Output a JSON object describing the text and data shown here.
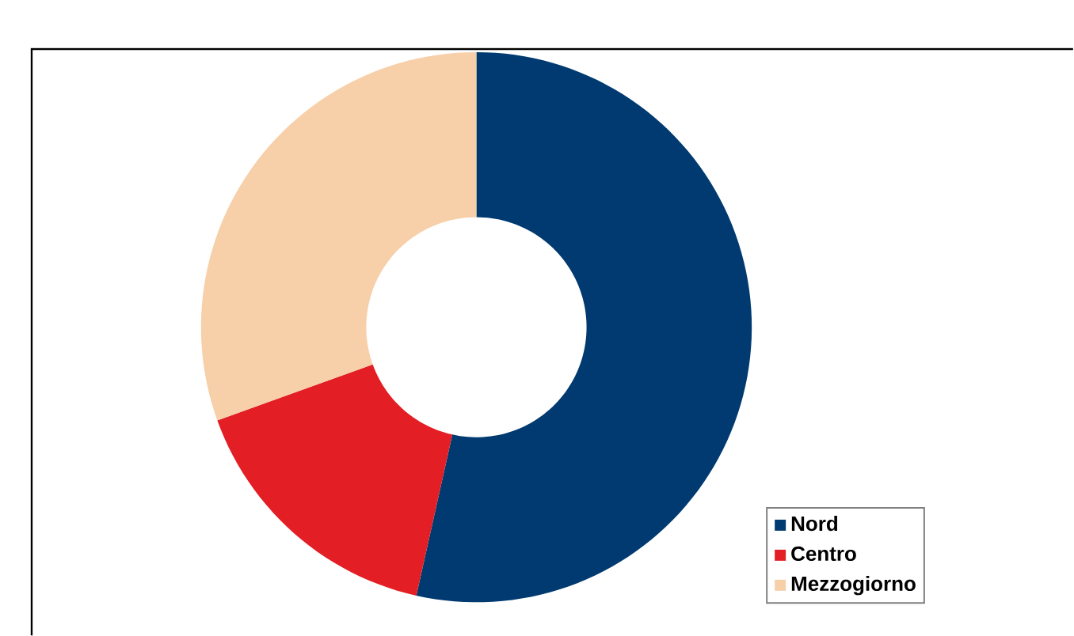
{
  "chart_data": {
    "type": "donut",
    "categories": [
      "Nord",
      "Centro",
      "Mezzogiorno"
    ],
    "values": [
      53.5,
      16,
      30.5
    ],
    "colors": [
      "#003a70",
      "#e31e24",
      "#f7cfa8"
    ],
    "legend": "bottom right"
  }
}
